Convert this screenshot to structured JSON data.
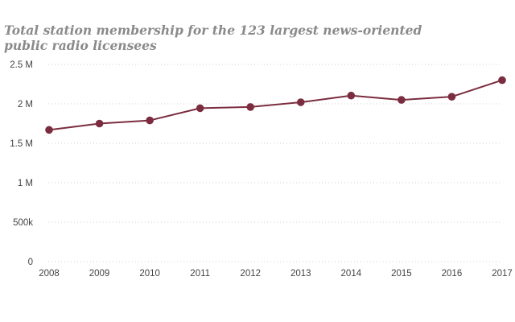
{
  "chart_data": {
    "type": "line",
    "title": "Total station membership for the 123 largest news-oriented public radio licensees",
    "xlabel": "",
    "ylabel": "",
    "categories": [
      "2008",
      "2009",
      "2010",
      "2011",
      "2012",
      "2013",
      "2014",
      "2015",
      "2016",
      "2017"
    ],
    "series": [
      {
        "values": [
          1670000,
          1750000,
          1790000,
          1945000,
          1960000,
          2020000,
          2105000,
          2050000,
          2090000,
          2300000
        ]
      }
    ],
    "ylim": [
      0,
      2500000
    ],
    "yticks": [
      0,
      500000,
      1000000,
      1500000,
      2000000,
      2500000
    ],
    "ytick_labels": [
      "0",
      "500k",
      "1 M",
      "1.5 M",
      "2 M",
      "2.5 M"
    ],
    "grid": true,
    "colors": {
      "line": "#7b2d3f",
      "grid": "#cfcfcf"
    }
  }
}
